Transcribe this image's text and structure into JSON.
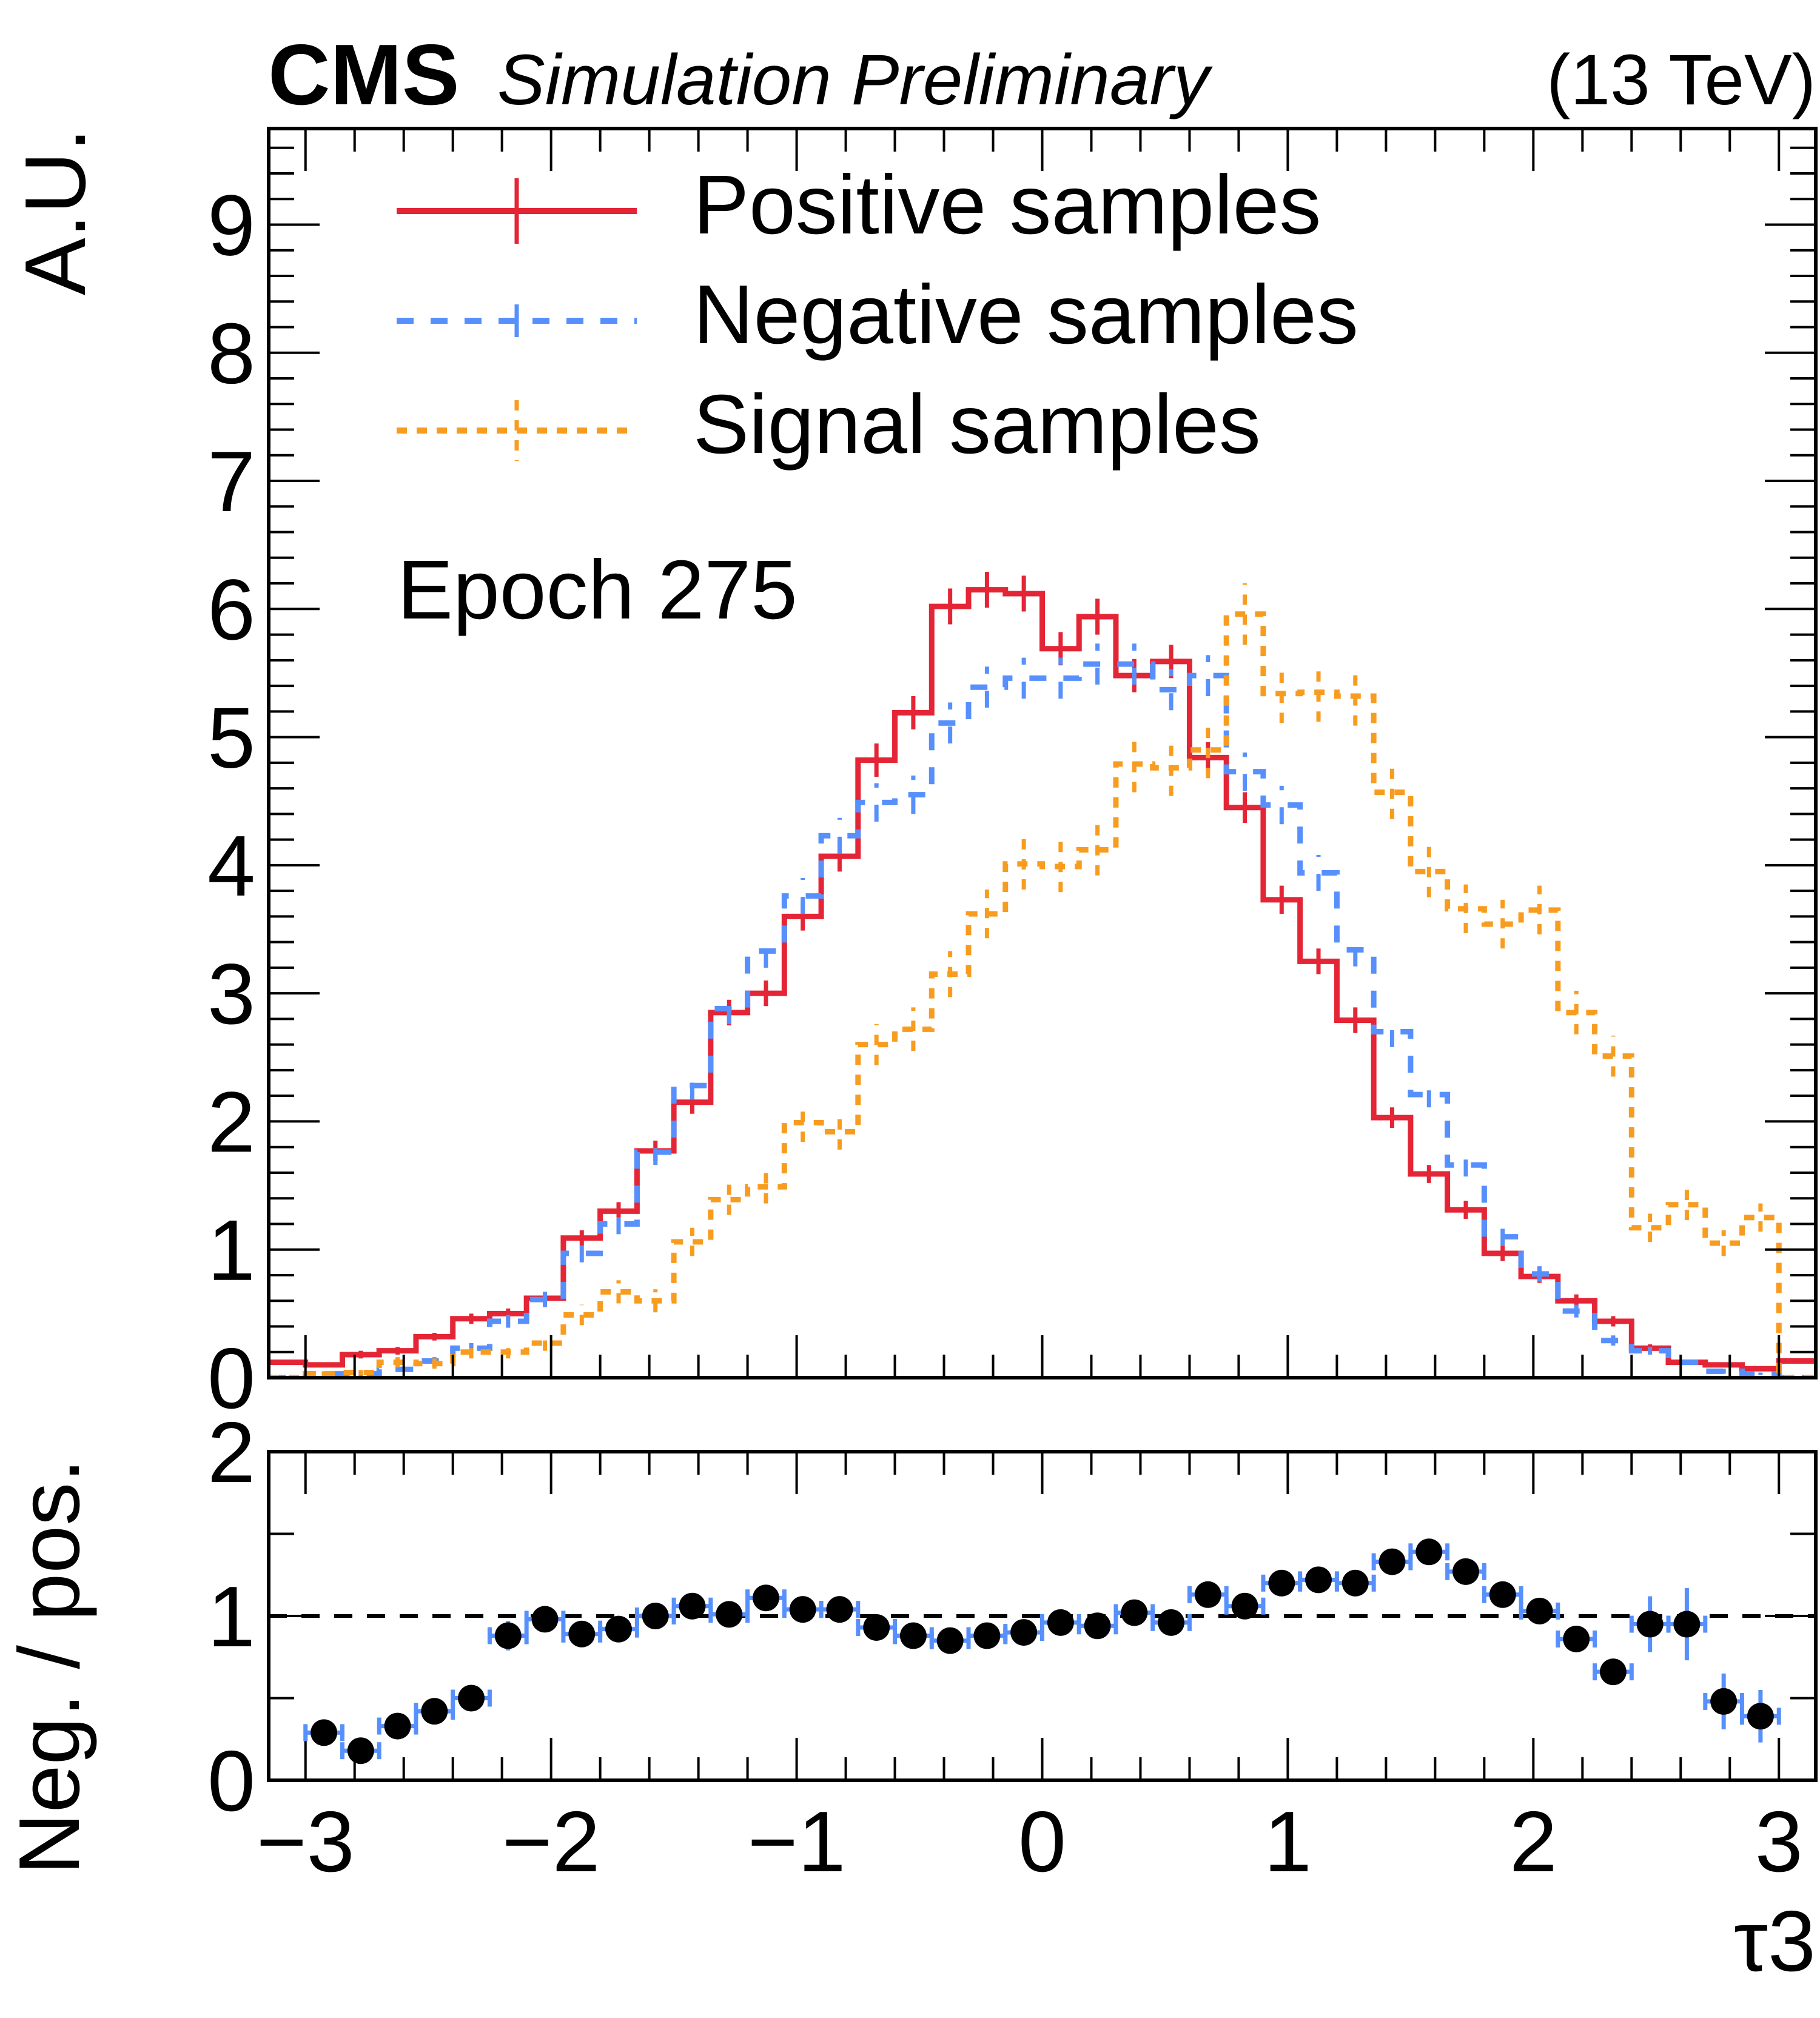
{
  "header": {
    "experiment": "CMS",
    "status": "Simulation Preliminary",
    "energy": "(13 TeV)"
  },
  "annotation": "Epoch 275",
  "chart_data": [
    {
      "type": "histogram",
      "panel": "main",
      "ylabel": "A.U.",
      "xlim": [
        -3.15,
        3.15
      ],
      "ylim": [
        0,
        9.75
      ],
      "bin_edges_start": -3.15,
      "bin_width": 0.15,
      "n_bins": 42,
      "yticks": [
        "0",
        "1",
        "2",
        "3",
        "4",
        "5",
        "6",
        "7",
        "8",
        "9"
      ],
      "legend_placement": "top-left",
      "series": [
        {
          "name": "Positive samples",
          "color": "#e42536",
          "style": "solid",
          "values": [
            0.12,
            0.1,
            0.18,
            0.21,
            0.32,
            0.46,
            0.5,
            0.62,
            1.09,
            1.3,
            1.77,
            2.15,
            2.85,
            3.0,
            3.6,
            4.07,
            4.82,
            5.19,
            6.02,
            6.15,
            6.12,
            5.69,
            5.94,
            5.48,
            5.59,
            4.84,
            4.45,
            3.73,
            3.25,
            2.79,
            2.03,
            1.59,
            1.31,
            0.97,
            0.79,
            0.6,
            0.44,
            0.23,
            0.12,
            0.1,
            0.07,
            0.13
          ],
          "errors": [
            0.02,
            0.02,
            0.03,
            0.03,
            0.03,
            0.04,
            0.04,
            0.05,
            0.06,
            0.07,
            0.08,
            0.09,
            0.1,
            0.1,
            0.11,
            0.12,
            0.13,
            0.13,
            0.14,
            0.14,
            0.14,
            0.13,
            0.14,
            0.13,
            0.13,
            0.12,
            0.12,
            0.11,
            0.1,
            0.1,
            0.08,
            0.07,
            0.07,
            0.06,
            0.05,
            0.05,
            0.04,
            0.03,
            0.02,
            0.02,
            0.02,
            0.02
          ]
        },
        {
          "name": "Negative samples",
          "color": "#5790fc",
          "style": "dashed",
          "values": [
            0.0,
            0.03,
            0.03,
            0.065,
            0.13,
            0.23,
            0.44,
            0.61,
            0.97,
            1.2,
            1.76,
            2.28,
            2.88,
            3.33,
            3.76,
            4.23,
            4.49,
            4.55,
            5.11,
            5.39,
            5.46,
            5.46,
            5.57,
            5.57,
            5.37,
            5.48,
            4.73,
            4.47,
            3.94,
            3.34,
            2.7,
            2.21,
            1.66,
            1.1,
            0.81,
            0.52,
            0.29,
            0.21,
            0.12,
            0.05,
            0.03,
            0.0
          ],
          "errors": [
            0.0,
            0.02,
            0.02,
            0.02,
            0.03,
            0.04,
            0.05,
            0.06,
            0.07,
            0.08,
            0.1,
            0.11,
            0.12,
            0.13,
            0.14,
            0.14,
            0.15,
            0.15,
            0.16,
            0.16,
            0.16,
            0.16,
            0.16,
            0.16,
            0.16,
            0.16,
            0.15,
            0.15,
            0.14,
            0.13,
            0.12,
            0.1,
            0.09,
            0.07,
            0.06,
            0.05,
            0.04,
            0.03,
            0.02,
            0.02,
            0.01,
            0.0
          ]
        },
        {
          "name": "Signal samples",
          "color": "#f89c20",
          "style": "dotted",
          "values": [
            0.0,
            0.03,
            0.04,
            0.12,
            0.11,
            0.2,
            0.2,
            0.27,
            0.49,
            0.67,
            0.6,
            1.06,
            1.39,
            1.49,
            1.99,
            1.92,
            2.6,
            2.72,
            3.15,
            3.62,
            4.01,
            3.99,
            4.12,
            4.79,
            4.76,
            4.9,
            5.96,
            5.34,
            5.35,
            5.32,
            4.57,
            3.95,
            3.66,
            3.54,
            3.65,
            2.85,
            2.51,
            1.17,
            1.35,
            1.05,
            1.25,
            0.0
          ],
          "errors": [
            0.0,
            0.02,
            0.02,
            0.04,
            0.04,
            0.05,
            0.05,
            0.06,
            0.08,
            0.09,
            0.09,
            0.11,
            0.12,
            0.13,
            0.15,
            0.14,
            0.16,
            0.17,
            0.18,
            0.19,
            0.2,
            0.2,
            0.2,
            0.22,
            0.22,
            0.22,
            0.24,
            0.23,
            0.23,
            0.23,
            0.21,
            0.2,
            0.19,
            0.19,
            0.19,
            0.17,
            0.16,
            0.11,
            0.12,
            0.1,
            0.11,
            0.0
          ]
        }
      ]
    },
    {
      "type": "scatter",
      "panel": "ratio",
      "ylabel": "Neg. / pos.",
      "xlabel": "τ3",
      "xlim": [
        -3.15,
        3.15
      ],
      "ylim": [
        0,
        2
      ],
      "xticks": [
        "−3",
        "−2",
        "−1",
        "0",
        "1",
        "2",
        "3"
      ],
      "yticks": [
        "0",
        "1",
        "2"
      ],
      "reference_line": 1,
      "marker_color": "#000000",
      "error_color": "#5790fc",
      "x": [
        -2.925,
        -2.775,
        -2.625,
        -2.475,
        -2.325,
        -2.175,
        -2.025,
        -1.875,
        -1.725,
        -1.575,
        -1.425,
        -1.275,
        -1.125,
        -0.975,
        -0.825,
        -0.675,
        -0.525,
        -0.375,
        -0.225,
        -0.075,
        0.075,
        0.225,
        0.375,
        0.525,
        0.675,
        0.825,
        0.975,
        1.125,
        1.275,
        1.425,
        1.575,
        1.725,
        1.875,
        2.025,
        2.175,
        2.325,
        2.475,
        2.625,
        2.775,
        2.925
      ],
      "values": [
        0.29,
        0.18,
        0.33,
        0.42,
        0.5,
        0.88,
        0.98,
        0.89,
        0.92,
        1.0,
        1.06,
        1.01,
        1.11,
        1.04,
        1.04,
        0.93,
        0.88,
        0.85,
        0.88,
        0.9,
        0.96,
        0.94,
        1.02,
        0.96,
        1.13,
        1.06,
        1.2,
        1.22,
        1.2,
        1.33,
        1.39,
        1.27,
        1.13,
        1.03,
        0.86,
        0.66,
        0.95,
        0.95,
        0.48,
        0.39
      ],
      "errors": [
        0.08,
        0.04,
        0.08,
        0.04,
        0.03,
        0.09,
        0.04,
        0.03,
        0.03,
        0.03,
        0.03,
        0.03,
        0.03,
        0.03,
        0.03,
        0.03,
        0.03,
        0.03,
        0.03,
        0.03,
        0.03,
        0.03,
        0.03,
        0.03,
        0.03,
        0.03,
        0.03,
        0.03,
        0.03,
        0.04,
        0.06,
        0.06,
        0.06,
        0.07,
        0.07,
        0.07,
        0.17,
        0.22,
        0.17,
        0.16
      ]
    }
  ]
}
